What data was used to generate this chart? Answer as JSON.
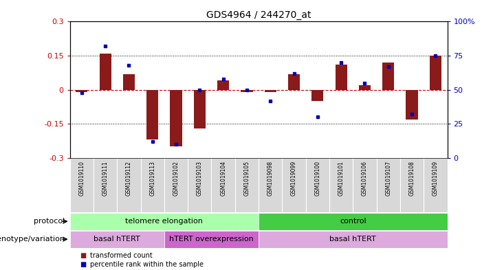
{
  "title": "GDS4964 / 244270_at",
  "samples": [
    "GSM1019110",
    "GSM1019111",
    "GSM1019112",
    "GSM1019113",
    "GSM1019102",
    "GSM1019103",
    "GSM1019104",
    "GSM1019105",
    "GSM1019098",
    "GSM1019099",
    "GSM1019100",
    "GSM1019101",
    "GSM1019106",
    "GSM1019107",
    "GSM1019108",
    "GSM1019109"
  ],
  "transformed_counts": [
    -0.01,
    0.16,
    0.07,
    -0.22,
    -0.25,
    -0.17,
    0.04,
    -0.01,
    -0.01,
    0.07,
    -0.05,
    0.11,
    0.02,
    0.12,
    -0.13,
    0.15
  ],
  "percentile_ranks": [
    48,
    82,
    68,
    12,
    10,
    50,
    58,
    50,
    42,
    62,
    30,
    70,
    55,
    67,
    32,
    75
  ],
  "ylim_left": [
    -0.3,
    0.3
  ],
  "ylim_right": [
    0,
    100
  ],
  "yticks_left": [
    -0.3,
    -0.15,
    0.0,
    0.15,
    0.3
  ],
  "yticks_right": [
    0,
    25,
    50,
    75,
    100
  ],
  "bar_color": "#8B1A1A",
  "dot_color": "#0000BB",
  "zero_line_color": "#CC0000",
  "grid_color": "#000000",
  "plot_bg": "#FFFFFF",
  "xlab_bg": "#D8D8D8",
  "protocol_groups": [
    {
      "label": "telomere elongation",
      "start": 0,
      "end": 7,
      "color": "#AAFFAA"
    },
    {
      "label": "control",
      "start": 8,
      "end": 15,
      "color": "#44CC44"
    }
  ],
  "genotype_groups": [
    {
      "label": "basal hTERT",
      "start": 0,
      "end": 3,
      "color": "#DDAADD"
    },
    {
      "label": "hTERT overexpression",
      "start": 4,
      "end": 7,
      "color": "#CC66CC"
    },
    {
      "label": "basal hTERT",
      "start": 8,
      "end": 15,
      "color": "#DDAADD"
    }
  ]
}
